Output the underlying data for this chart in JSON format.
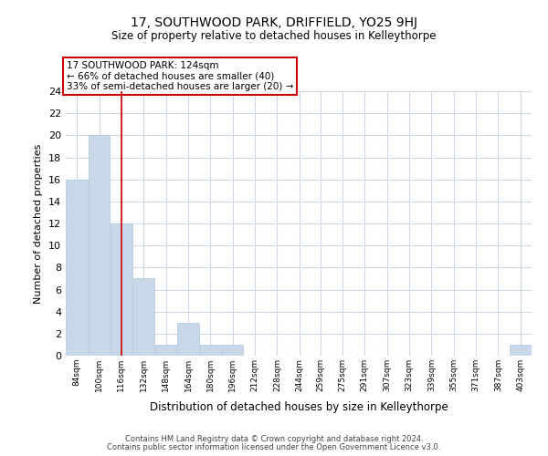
{
  "title": "17, SOUTHWOOD PARK, DRIFFIELD, YO25 9HJ",
  "subtitle": "Size of property relative to detached houses in Kelleythorpe",
  "xlabel": "Distribution of detached houses by size in Kelleythorpe",
  "ylabel": "Number of detached properties",
  "bar_color": "#c8d8e8",
  "bar_edge_color": "#afc8e0",
  "bin_labels": [
    "84sqm",
    "100sqm",
    "116sqm",
    "132sqm",
    "148sqm",
    "164sqm",
    "180sqm",
    "196sqm",
    "212sqm",
    "228sqm",
    "244sqm",
    "259sqm",
    "275sqm",
    "291sqm",
    "307sqm",
    "323sqm",
    "339sqm",
    "355sqm",
    "371sqm",
    "387sqm",
    "403sqm"
  ],
  "bin_edges": [
    84,
    100,
    116,
    132,
    148,
    164,
    180,
    196,
    212,
    228,
    244,
    259,
    275,
    291,
    307,
    323,
    339,
    355,
    371,
    387,
    403
  ],
  "bin_width": 16,
  "counts": [
    16,
    20,
    12,
    7,
    1,
    3,
    1,
    1,
    0,
    0,
    0,
    0,
    0,
    0,
    0,
    0,
    0,
    0,
    0,
    0,
    1
  ],
  "ylim": [
    0,
    24
  ],
  "yticks": [
    0,
    2,
    4,
    6,
    8,
    10,
    12,
    14,
    16,
    18,
    20,
    22,
    24
  ],
  "property_line_x": 124,
  "annotation_title": "17 SOUTHWOOD PARK: 124sqm",
  "annotation_line1": "← 66% of detached houses are smaller (40)",
  "annotation_line2": "33% of semi-detached houses are larger (20) →",
  "annotation_box_color": "#ffffff",
  "annotation_box_edge": "#cc0000",
  "property_line_color": "#cc0000",
  "footer_line1": "Contains HM Land Registry data © Crown copyright and database right 2024.",
  "footer_line2": "Contains public sector information licensed under the Open Government Licence v3.0.",
  "background_color": "#ffffff",
  "grid_color": "#d0d8e8"
}
